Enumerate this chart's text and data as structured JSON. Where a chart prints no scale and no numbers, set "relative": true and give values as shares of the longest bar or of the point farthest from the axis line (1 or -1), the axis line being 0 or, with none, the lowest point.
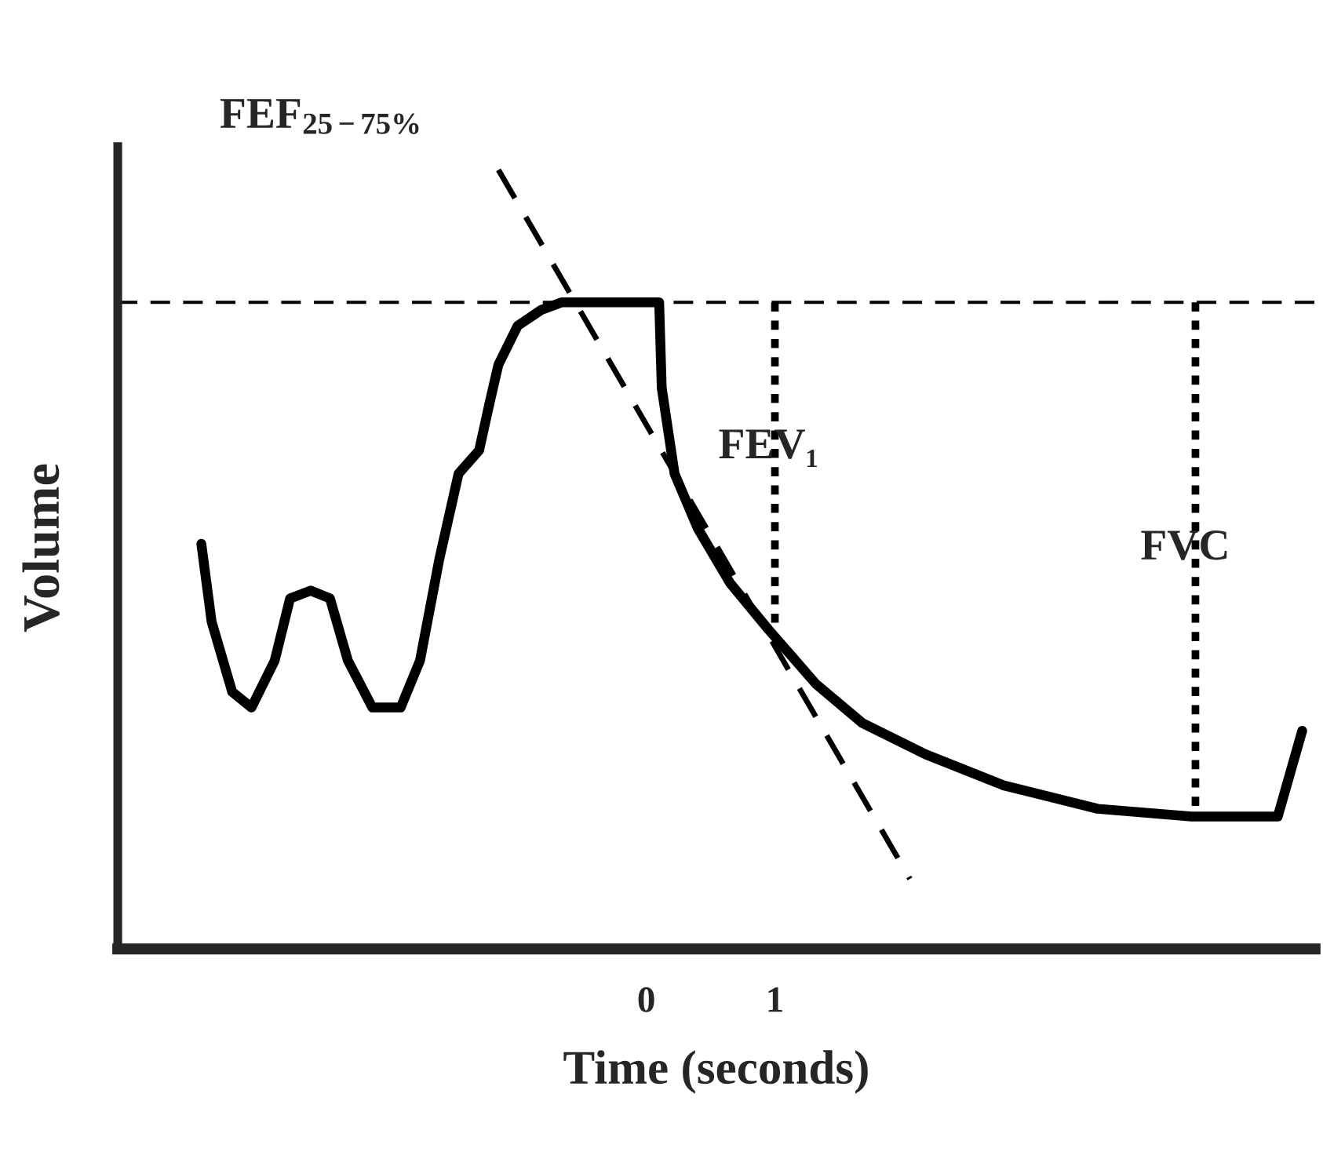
{
  "chart_data": {
    "type": "line",
    "relative": true,
    "xlabel": "Time (seconds)",
    "ylabel": "Volume",
    "xlim": [
      -4.11,
      5.2
    ],
    "xticks": [
      0,
      1
    ],
    "grid": false,
    "legend": false,
    "marker": "none",
    "series": [
      {
        "color": "#000000",
        "line_style": "solid",
        "x": [
          -3.46,
          -3.38,
          -3.22,
          -3.07,
          -2.89,
          -2.77,
          -2.61,
          -2.46,
          -2.32,
          -2.13,
          -1.91,
          -1.76,
          -1.61,
          -1.46,
          -1.3,
          -1.22,
          -1.15,
          -1.0,
          -0.82,
          -0.66,
          0.1,
          0.12,
          0.22,
          0.4,
          0.65,
          0.95,
          1.32,
          1.68,
          2.17,
          2.78,
          3.51,
          4.24,
          4.91,
          5.1
        ],
        "values": [
          0.52,
          0.42,
          0.33,
          0.31,
          0.37,
          0.45,
          0.46,
          0.45,
          0.37,
          0.31,
          0.31,
          0.37,
          0.5,
          0.61,
          0.64,
          0.7,
          0.75,
          0.8,
          0.82,
          0.83,
          0.83,
          0.72,
          0.61,
          0.54,
          0.47,
          0.41,
          0.34,
          0.29,
          0.25,
          0.21,
          0.18,
          0.17,
          0.17,
          0.28
        ]
      },
      {
        "color": "#000000",
        "line_style": "dashed",
        "x": [
          -1.15,
          2.05
        ],
        "values": [
          1.0,
          0.09
        ]
      },
      {
        "color": "#000000",
        "line_style": "dotted",
        "x": [
          1.0,
          1.0
        ],
        "values": [
          0.83,
          0.41
        ]
      },
      {
        "color": "#000000",
        "line_style": "dotted",
        "x": [
          4.27,
          4.27
        ],
        "values": [
          0.83,
          0.17
        ]
      }
    ],
    "ref_lines": [
      {
        "axis": "y",
        "value": 0.83,
        "line_style": "dashed",
        "color": "#000000"
      }
    ],
    "annotations": [
      "FEF$_{25−75%}$",
      "FEV₁",
      "FVC"
    ]
  }
}
